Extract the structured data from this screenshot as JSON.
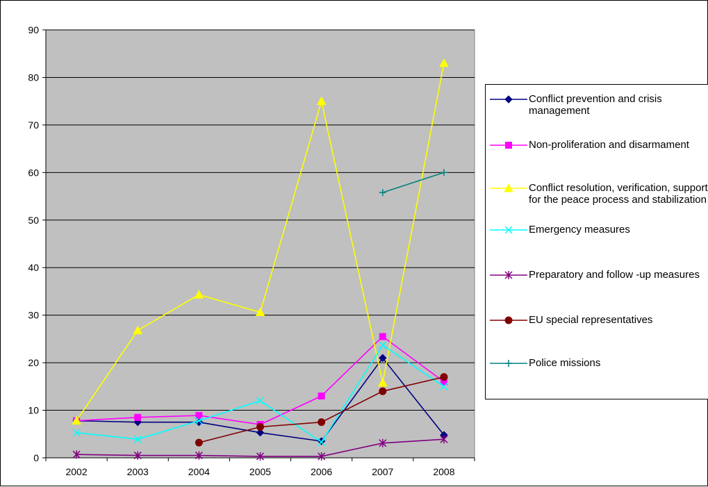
{
  "chart_data": {
    "type": "line",
    "title": "",
    "xlabel": "",
    "ylabel": "",
    "categories": [
      "2002",
      "2003",
      "2004",
      "2005",
      "2006",
      "2007",
      "2008"
    ],
    "ylim": [
      0,
      90
    ],
    "yticks": [
      0,
      10,
      20,
      30,
      40,
      50,
      60,
      70,
      80,
      90
    ],
    "grid": true,
    "plot_background": "#c0c0c0",
    "legend_position": "right",
    "series": [
      {
        "name": "Conflict prevention and crisis management",
        "color": "#000080",
        "marker": "diamond",
        "values": [
          7.8,
          7.5,
          7.5,
          5.3,
          3.5,
          21.0,
          4.8
        ]
      },
      {
        "name": "Non-proliferation and disarmament",
        "color": "#ff00ff",
        "marker": "square",
        "values": [
          7.8,
          8.5,
          8.9,
          7.0,
          13.0,
          25.5,
          16.0
        ]
      },
      {
        "name": "Conflict resolution, verification, support for the peace process and stabilization",
        "color": "#ffff00",
        "marker": "triangle",
        "values": [
          7.8,
          26.8,
          34.3,
          30.6,
          75.0,
          15.8,
          83.0
        ]
      },
      {
        "name": "Emergency measures",
        "color": "#00ffff",
        "marker": "x",
        "values": [
          5.3,
          3.9,
          7.8,
          12.0,
          3.3,
          23.7,
          15.0
        ]
      },
      {
        "name": "Preparatory and follow -up measures",
        "color": "#800080",
        "marker": "asterisk",
        "values": [
          0.7,
          0.5,
          0.5,
          0.3,
          0.3,
          3.1,
          3.9
        ]
      },
      {
        "name": "EU special representatives",
        "color": "#800000",
        "marker": "circle",
        "values": [
          null,
          null,
          3.2,
          6.5,
          7.5,
          14.0,
          17.0
        ]
      },
      {
        "name": "Police missions",
        "color": "#008080",
        "marker": "plus",
        "values": [
          null,
          null,
          null,
          null,
          null,
          55.8,
          60.0
        ]
      }
    ]
  }
}
